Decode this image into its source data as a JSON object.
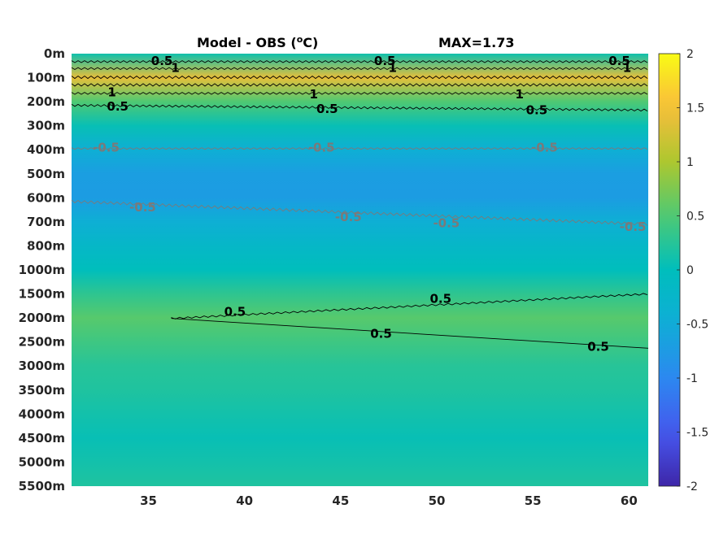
{
  "chart_data": {
    "type": "heatmap",
    "title": "Model - OBS (",
    "title_sup": "o",
    "title_unit": "C)",
    "max_label": "MAX=1.73",
    "colormap": "parula",
    "clim": [
      -2,
      2
    ],
    "xlim": [
      31,
      61
    ],
    "x_ticks": [
      35,
      40,
      45,
      50,
      55,
      60
    ],
    "y_tick_labels": [
      "0m",
      "100m",
      "200m",
      "300m",
      "400m",
      "500m",
      "600m",
      "700m",
      "800m",
      "1000m",
      "1500m",
      "2000m",
      "2500m",
      "3000m",
      "3500m",
      "4000m",
      "4500m",
      "5000m",
      "5500m"
    ],
    "colorbar_ticks": [
      2,
      1.5,
      1,
      0.5,
      0,
      -0.5,
      -1,
      -1.5,
      -2
    ],
    "colorbar_labels": [
      "2",
      "1.5",
      "1",
      "0.5",
      "0",
      "-0.5",
      "-1",
      "-1.5",
      "-2"
    ],
    "depth_profile": [
      {
        "depth": "0m",
        "value": 0.1
      },
      {
        "depth": "100m",
        "value": 1.4
      },
      {
        "depth": "200m",
        "value": 0.5
      },
      {
        "depth": "300m",
        "value": 0.05
      },
      {
        "depth": "400m",
        "value": -0.45
      },
      {
        "depth": "500m",
        "value": -0.7
      },
      {
        "depth": "600m",
        "value": -0.72
      },
      {
        "depth": "700m",
        "value": -0.45
      },
      {
        "depth": "800m",
        "value": -0.2
      },
      {
        "depth": "1000m",
        "value": 0.0
      },
      {
        "depth": "1500m",
        "value": 0.3
      },
      {
        "depth": "2000m",
        "value": 0.55
      },
      {
        "depth": "2500m",
        "value": 0.4
      },
      {
        "depth": "3000m",
        "value": 0.25
      },
      {
        "depth": "3500m",
        "value": 0.2
      },
      {
        "depth": "4000m",
        "value": 0.12
      },
      {
        "depth": "4500m",
        "value": 0.05
      },
      {
        "depth": "5000m",
        "value": 0.12
      },
      {
        "depth": "5500m",
        "value": 0.2
      }
    ],
    "contour_labels": [
      {
        "text": "0.5",
        "lon": 35.7,
        "depth_index": 0.3,
        "color": "black"
      },
      {
        "text": "1",
        "lon": 36.4,
        "depth_index": 0.6,
        "color": "black"
      },
      {
        "text": "0.5",
        "lon": 47.3,
        "depth_index": 0.3,
        "color": "black"
      },
      {
        "text": "1",
        "lon": 47.7,
        "depth_index": 0.6,
        "color": "black"
      },
      {
        "text": "0.5",
        "lon": 59.5,
        "depth_index": 0.3,
        "color": "black"
      },
      {
        "text": "1",
        "lon": 59.9,
        "depth_index": 0.6,
        "color": "black"
      },
      {
        "text": "1",
        "lon": 33.1,
        "depth_index": 1.6,
        "color": "black"
      },
      {
        "text": "1",
        "lon": 43.6,
        "depth_index": 1.7,
        "color": "black"
      },
      {
        "text": "1",
        "lon": 54.3,
        "depth_index": 1.7,
        "color": "black"
      },
      {
        "text": "0.5",
        "lon": 33.4,
        "depth_index": 2.2,
        "color": "black"
      },
      {
        "text": "0.5",
        "lon": 44.3,
        "depth_index": 2.3,
        "color": "black"
      },
      {
        "text": "0.5",
        "lon": 55.2,
        "depth_index": 2.35,
        "color": "black"
      },
      {
        "text": "-0.5",
        "lon": 32.8,
        "depth_index": 3.9,
        "color": "gray"
      },
      {
        "text": "-0.5",
        "lon": 44.0,
        "depth_index": 3.9,
        "color": "gray"
      },
      {
        "text": "-0.5",
        "lon": 55.6,
        "depth_index": 3.9,
        "color": "gray"
      },
      {
        "text": "-0.5",
        "lon": 34.7,
        "depth_index": 6.4,
        "color": "gray"
      },
      {
        "text": "-0.5",
        "lon": 45.4,
        "depth_index": 6.8,
        "color": "gray"
      },
      {
        "text": "-0.5",
        "lon": 50.5,
        "depth_index": 7.05,
        "color": "gray"
      },
      {
        "text": "-0.5",
        "lon": 60.2,
        "depth_index": 7.2,
        "color": "gray"
      },
      {
        "text": "0.5",
        "lon": 39.5,
        "depth_index": 10.75,
        "color": "black"
      },
      {
        "text": "0.5",
        "lon": 50.2,
        "depth_index": 10.2,
        "color": "black"
      },
      {
        "text": "0.5",
        "lon": 47.1,
        "depth_index": 11.65,
        "color": "black"
      },
      {
        "text": "0.5",
        "lon": 58.4,
        "depth_index": 12.2,
        "color": "black"
      }
    ]
  }
}
